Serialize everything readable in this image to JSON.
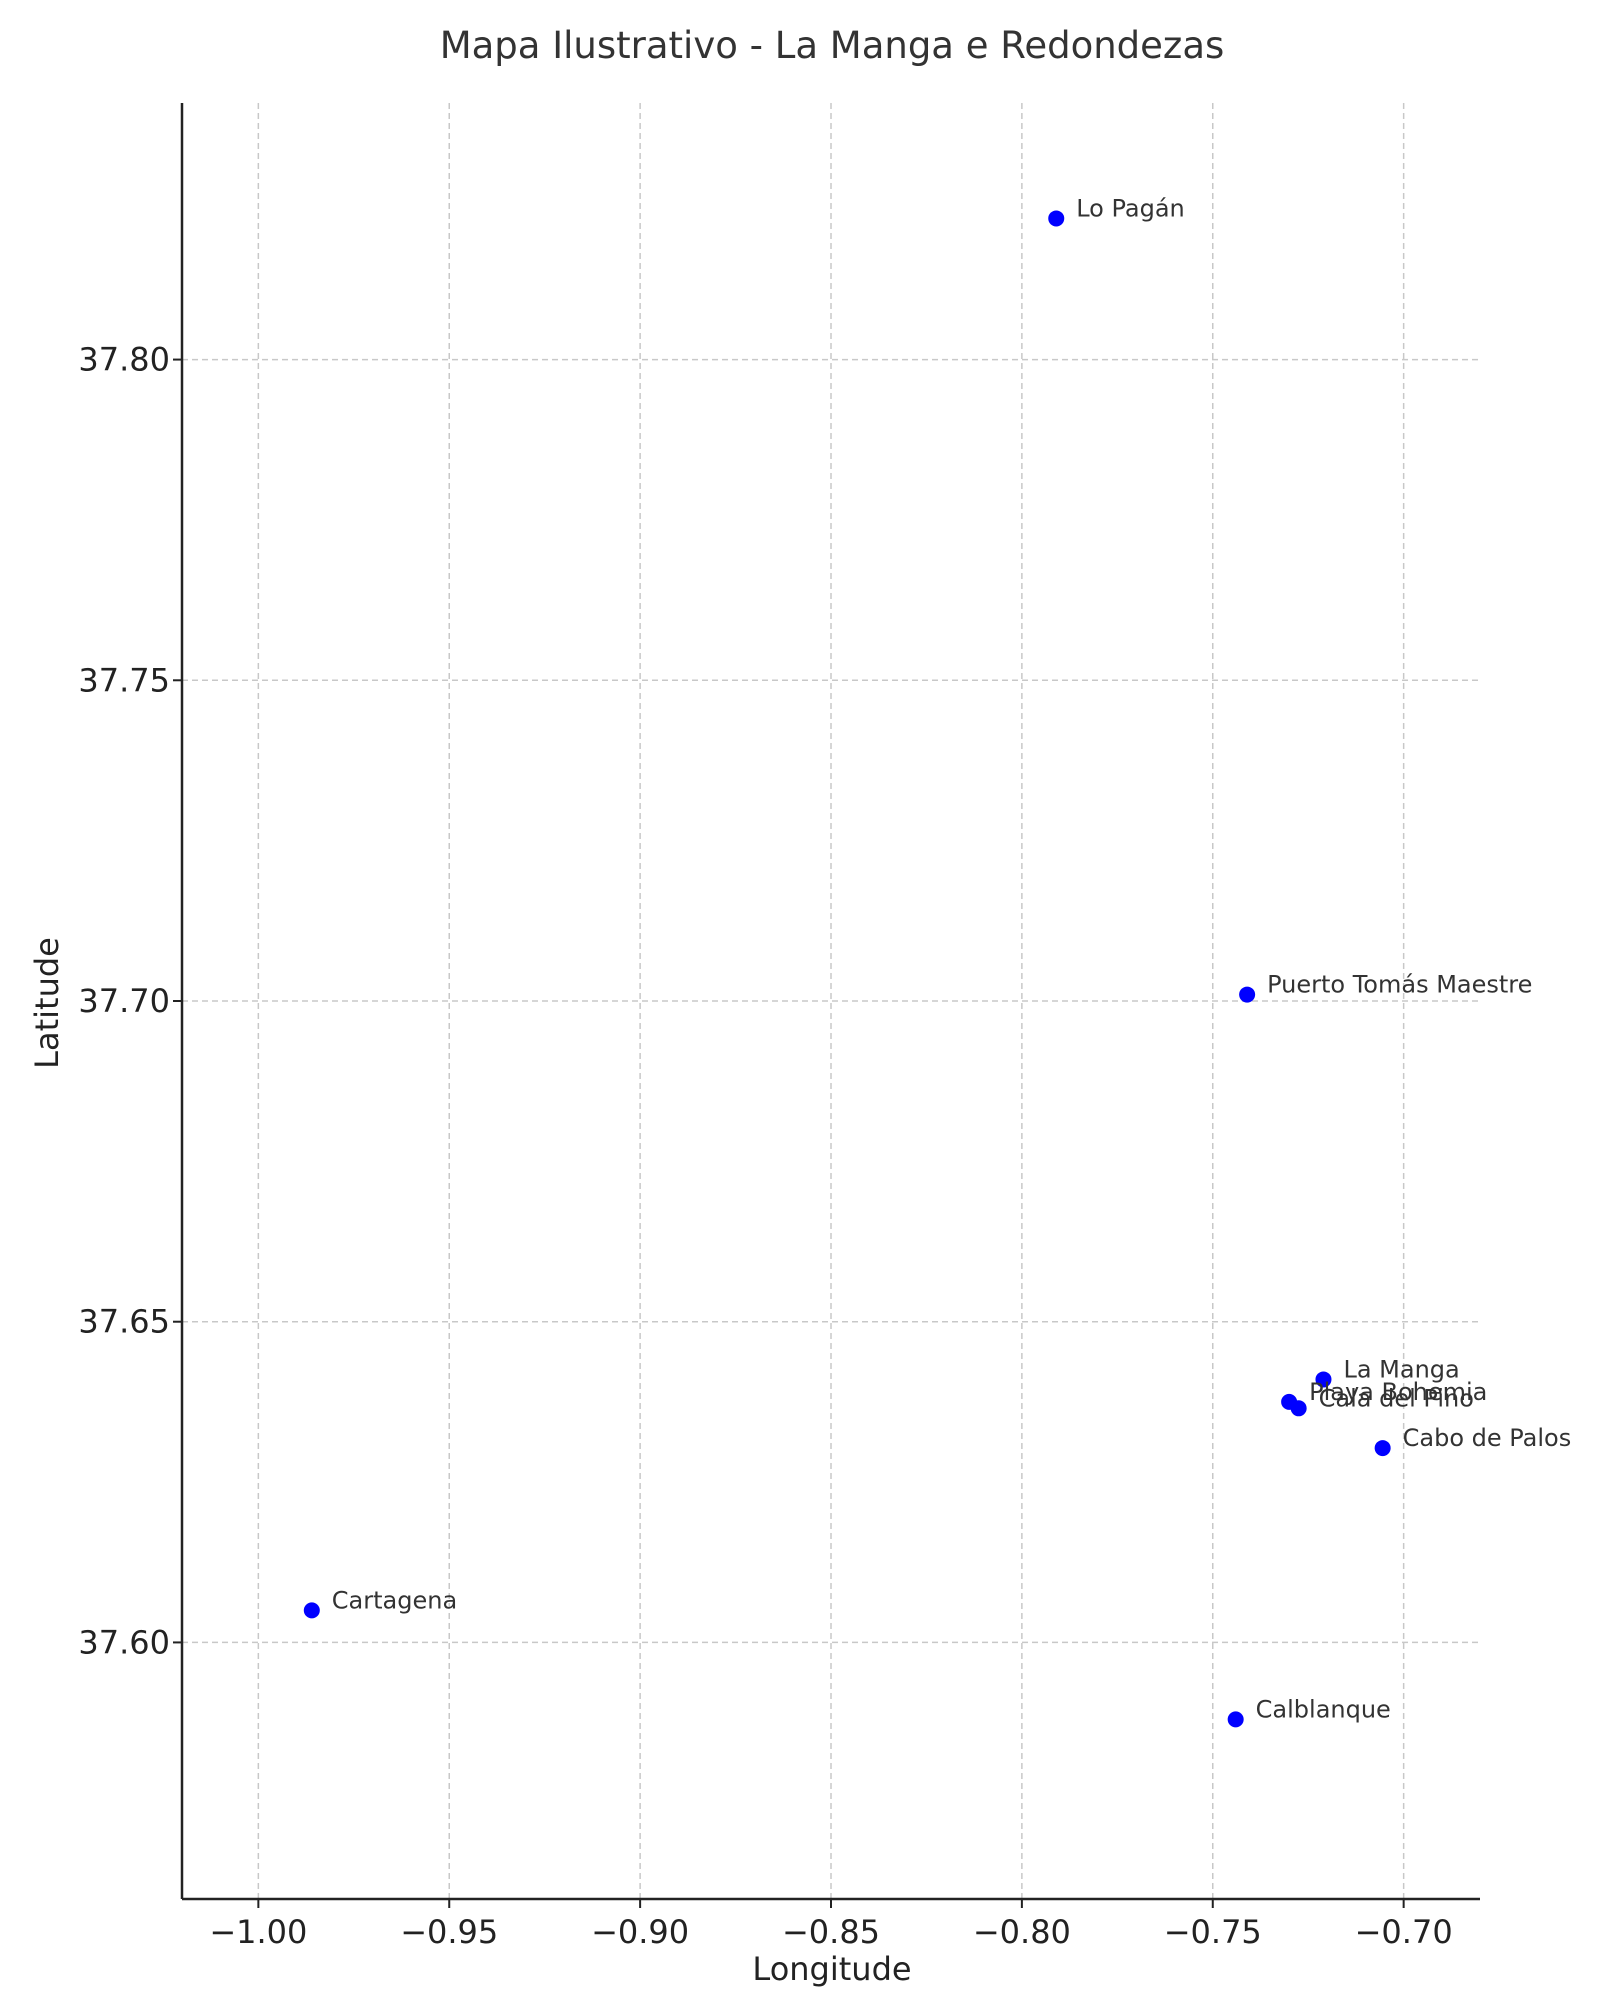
{
  "chart_data": {
    "type": "scatter",
    "title": "Mapa Ilustrativo - La Manga e Redondezas",
    "xlabel": "Longitude",
    "ylabel": "Latitude",
    "xlim": [
      -1.02,
      -0.68
    ],
    "ylim": [
      37.56,
      37.84
    ],
    "xticks": [
      -1.0,
      -0.95,
      -0.9,
      -0.85,
      -0.8,
      -0.75,
      -0.7
    ],
    "xtick_labels": [
      "−1.00",
      "−0.95",
      "−0.90",
      "−0.85",
      "−0.80",
      "−0.75",
      "−0.70"
    ],
    "yticks": [
      37.6,
      37.65,
      37.7,
      37.75,
      37.8
    ],
    "ytick_labels": [
      "37.60",
      "37.65",
      "37.70",
      "37.75",
      "37.80"
    ],
    "grid": true,
    "marker_color": "#0000ff",
    "points": [
      {
        "label": "Lo Pagán",
        "x": -0.791,
        "y": 37.822
      },
      {
        "label": "Puerto Tomás Maestre",
        "x": -0.741,
        "y": 37.701
      },
      {
        "label": "La Manga",
        "x": -0.721,
        "y": 37.641
      },
      {
        "label": "Playa Bohemia",
        "x": -0.73,
        "y": 37.6375
      },
      {
        "label": "Cala del Pino",
        "x": -0.7275,
        "y": 37.6365
      },
      {
        "label": "Cabo de Palos",
        "x": -0.7055,
        "y": 37.6303
      },
      {
        "label": "Cartagena",
        "x": -0.986,
        "y": 37.605
      },
      {
        "label": "Calblanque",
        "x": -0.744,
        "y": 37.588
      }
    ]
  }
}
